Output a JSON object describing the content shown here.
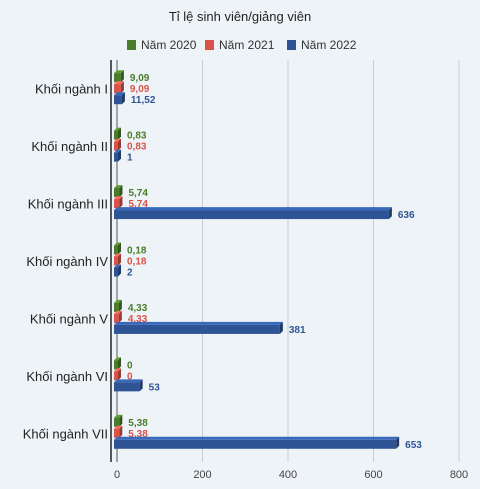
{
  "chart_data": {
    "type": "bar",
    "orientation": "horizontal",
    "title": "Tỉ lệ sinh viên/giảng viên",
    "categories": [
      "Khối ngành I",
      "Khối ngành II",
      "Khối ngành III",
      "Khối ngành IV",
      "Khối ngành V",
      "Khối ngành VI",
      "Khối ngành VII"
    ],
    "series": [
      {
        "name": "Năm 2020",
        "color": "#4a7c2a",
        "values": [
          9.09,
          0.83,
          5.74,
          0.18,
          4.33,
          0,
          5.38
        ],
        "labels": [
          "9,09",
          "0,83",
          "5,74",
          "0,18",
          "4,33",
          "0",
          "5,38"
        ]
      },
      {
        "name": "Năm 2021",
        "color": "#d9534a",
        "values": [
          9.09,
          0.83,
          5.74,
          0.18,
          4.33,
          0,
          5.38
        ],
        "labels": [
          "9,09",
          "0,83",
          "5,74",
          "0,18",
          "4,33",
          "0",
          "5,38"
        ]
      },
      {
        "name": "Năm 2022",
        "color": "#2e5496",
        "values": [
          11.52,
          1,
          636,
          2,
          381,
          53,
          653
        ],
        "labels": [
          "11,52",
          "1",
          "636",
          "2",
          "381",
          "53",
          "653"
        ]
      }
    ],
    "xlim": [
      0,
      800
    ],
    "xticks": [
      0,
      200,
      400,
      600,
      800
    ],
    "grid": true,
    "legend": "top"
  }
}
